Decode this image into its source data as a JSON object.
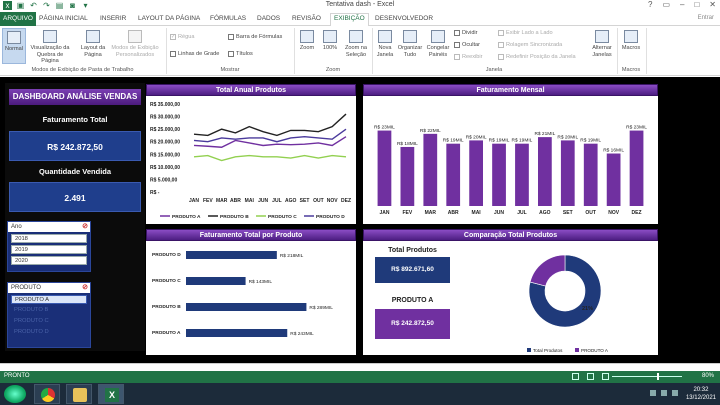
{
  "window": {
    "title": "Tentativa dash - Excel",
    "entrar": "Entrar"
  },
  "tabs": [
    "ARQUIVO",
    "PÁGINA INICIAL",
    "INSERIR",
    "LAYOUT DA PÁGINA",
    "FÓRMULAS",
    "DADOS",
    "REVISÃO",
    "EXIBIÇÃO",
    "DESENVOLVEDOR"
  ],
  "ribbon": {
    "normal": "Normal",
    "quebra": "Visualização da Quebra de Página",
    "layout": "Layout da Página",
    "modos": "Modos de Exibição Personalizados",
    "regua": "Régua",
    "barra_formulas": "Barra de Fórmulas",
    "linhas_grade": "Linhas de Grade",
    "titulos": "Títulos",
    "zoom": "Zoom",
    "zoom100": "100%",
    "zoom_selecao": "Zoom na Seleção",
    "nova_janela": "Nova Janela",
    "organizar": "Organizar Tudo",
    "congelar": "Congelar Painéis",
    "dividir": "Dividir",
    "ocultar": "Ocultar",
    "reexibir": "Reexibir",
    "lado_a_lado": "Exibir Lado a Lado",
    "rolagem": "Rolagem Sincronizada",
    "redefinir": "Redefinir Posição da Janela",
    "alternar": "Alternar Janelas",
    "macros": "Macros",
    "grp_modos": "Modos de Exibição de Pasta de Trabalho",
    "grp_mostrar": "Mostrar",
    "grp_zoom": "Zoom",
    "grp_janela": "Janela",
    "grp_macros": "Macros"
  },
  "sidebar": {
    "title": "DASHBOARD ANÁLISE VENDAS",
    "fat_label": "Faturamento Total",
    "fat_value": "R$ 242.872,50",
    "qtd_label": "Quantidade Vendida",
    "qtd_value": "2.491",
    "slicer_ano": {
      "header": "Ano",
      "items": [
        "2018",
        "2019",
        "2020"
      ]
    },
    "slicer_produto": {
      "header": "PRODUTO",
      "items": [
        "PRODUTO A",
        "PRODUTO B",
        "PRODUTO C",
        "PRODUTO D"
      ],
      "selected": 0
    }
  },
  "charts": {
    "anual": {
      "title": "Total Anual Produtos",
      "yticks": [
        "R$ 35.000,00",
        "R$ 30.000,00",
        "R$ 25.000,00",
        "R$ 20.000,00",
        "R$ 15.000,00",
        "R$ 10.000,00",
        "R$ 5.000,00",
        "R$ -"
      ]
    },
    "mensal": {
      "title": "Faturamento Mensal"
    },
    "produto": {
      "title": "Faturamento Total por Produto"
    },
    "comparacao": {
      "title": "Comparação Total Produtos",
      "total_label": "Total Produtos",
      "total_value": "R$ 892.671,60",
      "prod_label": "PRODUTO A",
      "prod_value": "R$ 242.872,50",
      "pct_label": "21%",
      "legend": [
        "Total Produtos",
        "PRODUTO A"
      ]
    }
  },
  "chart_data": [
    {
      "type": "line",
      "title": "Total Anual Produtos",
      "x": [
        "JAN",
        "FEV",
        "MAR",
        "ABR",
        "MAI",
        "JUN",
        "JUL",
        "AGO",
        "SET",
        "OUT",
        "NOV",
        "DEZ"
      ],
      "ylim": [
        0,
        35000
      ],
      "series": [
        {
          "name": "PRODUTO A",
          "color": "#7030a0",
          "values": [
            18500,
            18200,
            17800,
            20500,
            19500,
            18500,
            19000,
            18800,
            19000,
            19500,
            18500,
            22000
          ]
        },
        {
          "name": "PRODUTO B",
          "color": "#222222",
          "values": [
            23000,
            22500,
            25000,
            23500,
            26000,
            24000,
            22500,
            24500,
            24500,
            24000,
            26000,
            31000
          ]
        },
        {
          "name": "PRODUTO C",
          "color": "#92d050",
          "values": [
            14000,
            14500,
            12500,
            14000,
            14500,
            14000,
            14000,
            13500,
            14500,
            13500,
            14500,
            14000
          ]
        },
        {
          "name": "PRODUTO D",
          "color": "#4a3a9c",
          "values": [
            20500,
            20000,
            21500,
            21000,
            21500,
            21500,
            20000,
            21500,
            22000,
            21500,
            21000,
            25000
          ]
        }
      ],
      "legend": "bottom"
    },
    {
      "type": "bar",
      "title": "Faturamento Mensal",
      "categories": [
        "JAN",
        "FEV",
        "MAR",
        "ABR",
        "MAI",
        "JUN",
        "JUL",
        "AGO",
        "SET",
        "OUT",
        "NOV",
        "DEZ"
      ],
      "values": [
        23,
        18,
        22,
        19,
        20,
        19,
        19,
        21,
        20,
        19,
        16,
        23
      ],
      "labels": [
        "R$ 23MIL",
        "R$ 18MIL",
        "R$ 22MIL",
        "R$ 19MIL",
        "R$ 20MIL",
        "R$ 19MIL",
        "R$ 19MIL",
        "R$ 21MIL",
        "R$ 20MIL",
        "R$ 19MIL",
        "R$ 16MIL",
        "R$ 23MIL"
      ]
    },
    {
      "type": "bar",
      "title": "Faturamento Total por Produto",
      "categories": [
        "PRODUTO D",
        "PRODUTO C",
        "PRODUTO B",
        "PRODUTO A"
      ],
      "values": [
        218,
        143,
        289,
        243
      ],
      "labels": [
        "R$ 218MIL",
        "R$ 143MIL",
        "R$ 289MIL",
        "R$ 243MIL"
      ]
    },
    {
      "type": "pie",
      "title": "Comparação Total Produtos",
      "categories": [
        "Total Produtos",
        "PRODUTO A"
      ],
      "values": [
        79,
        21
      ],
      "colors": [
        "#1f3a7a",
        "#7030a0"
      ]
    }
  ],
  "status": {
    "ready": "PRONTO",
    "zoom": "80%"
  },
  "clock": {
    "time": "20:32",
    "date": "13/12/2021"
  }
}
